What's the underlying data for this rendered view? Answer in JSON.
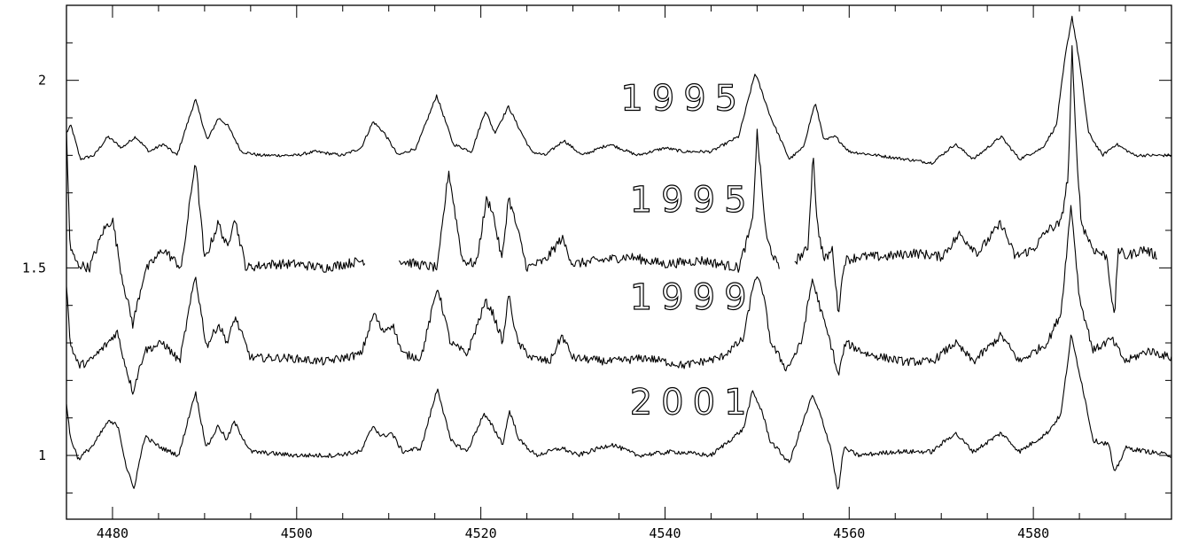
{
  "chart_data": {
    "type": "line",
    "title": "",
    "xlabel": "",
    "ylabel": "",
    "xlim": [
      4475,
      4595
    ],
    "ylim": [
      0.83,
      2.2
    ],
    "x_major_ticks": [
      4480,
      4500,
      4520,
      4540,
      4560,
      4580
    ],
    "x_tick_labels": [
      "4480",
      "4500",
      "4520",
      "4540",
      "4560",
      "4580"
    ],
    "x_minor_step": 5,
    "y_major_ticks": [
      1,
      1.5,
      2
    ],
    "y_tick_labels": [
      "1",
      "1.5",
      "2"
    ],
    "y_minor_step": 0.1,
    "grid": false,
    "legend": "none",
    "annotations": [
      {
        "text": "1995",
        "x": 4542,
        "y": 1.92
      },
      {
        "text": "1995",
        "x": 4543,
        "y": 1.65
      },
      {
        "text": "1999",
        "x": 4543,
        "y": 1.39
      },
      {
        "text": "2001",
        "x": 4543,
        "y": 1.11
      }
    ],
    "series": [
      {
        "name": "1995",
        "baseline": 1.8,
        "x": [
          4475,
          4475.5,
          4476.5,
          4478,
          4479.5,
          4481,
          4482.5,
          4484,
          4485.5,
          4487,
          4489,
          4490.3,
          4491.5,
          4492.5,
          4494,
          4496,
          4500,
          4502,
          4505,
          4507,
          4508.3,
          4509.5,
          4511,
          4513,
          4515.2,
          4517,
          4519,
          4520.5,
          4521.5,
          4523,
          4524.2,
          4525.5,
          4527,
          4529,
          4531,
          4534,
          4537,
          4540,
          4542,
          4545,
          4548,
          4549.8,
          4551.5,
          4553.5,
          4555,
          4556.3,
          4557.3,
          4558.5,
          4560,
          4563,
          4566,
          4569,
          4571.5,
          4573.5,
          4576.5,
          4578.5,
          4581,
          4582.5,
          4583.5,
          4584.2,
          4585,
          4586,
          4587.5,
          4589,
          4591,
          4595
        ],
        "y": [
          1.86,
          1.88,
          1.79,
          1.8,
          1.85,
          1.82,
          1.85,
          1.81,
          1.83,
          1.8,
          1.95,
          1.84,
          1.9,
          1.88,
          1.81,
          1.8,
          1.8,
          1.81,
          1.8,
          1.82,
          1.89,
          1.86,
          1.8,
          1.82,
          1.96,
          1.83,
          1.81,
          1.92,
          1.86,
          1.93,
          1.87,
          1.81,
          1.8,
          1.84,
          1.8,
          1.83,
          1.8,
          1.82,
          1.81,
          1.81,
          1.85,
          2.02,
          1.9,
          1.79,
          1.82,
          1.94,
          1.84,
          1.85,
          1.81,
          1.8,
          1.79,
          1.78,
          1.83,
          1.79,
          1.85,
          1.79,
          1.82,
          1.88,
          2.07,
          2.17,
          2.05,
          1.86,
          1.8,
          1.83,
          1.8,
          1.8
        ]
      },
      {
        "name": "1995",
        "baseline": 1.51,
        "gaps": [
          [
            4507.5,
            4511
          ],
          [
            4552.5,
            4554
          ]
        ],
        "x": [
          4475,
          4475.4,
          4476.2,
          4477.5,
          4479,
          4480,
          4481,
          4482.2,
          4483.5,
          4485.5,
          4487.5,
          4489,
          4490,
          4491.5,
          4492.5,
          4493.2,
          4494.5,
          4497,
          4500,
          4503,
          4507.3,
          4511.2,
          4513,
          4515.3,
          4516.5,
          4518,
          4519.5,
          4520.6,
          4521.2,
          4522.3,
          4523,
          4524,
          4525,
          4527,
          4528.8,
          4530,
          4533,
          4536,
          4540,
          4544,
          4548,
          4549.5,
          4550,
          4551,
          4552.3,
          4554.2,
          4555.5,
          4556.1,
          4556.5,
          4557.3,
          4558.2,
          4558.8,
          4559.5,
          4561,
          4564,
          4567,
          4570,
          4572,
          4574,
          4576.5,
          4578,
          4580,
          4581.5,
          4583,
          4583.8,
          4584.2,
          4584.6,
          4585.2,
          4586.5,
          4588,
          4588.8,
          4589.2,
          4590,
          4592,
          4593.5
        ],
        "y": [
          1.86,
          1.55,
          1.51,
          1.5,
          1.6,
          1.63,
          1.48,
          1.35,
          1.49,
          1.55,
          1.5,
          1.79,
          1.52,
          1.62,
          1.55,
          1.64,
          1.5,
          1.51,
          1.51,
          1.5,
          1.52,
          1.52,
          1.51,
          1.5,
          1.76,
          1.52,
          1.51,
          1.68,
          1.66,
          1.52,
          1.69,
          1.6,
          1.5,
          1.52,
          1.58,
          1.51,
          1.52,
          1.53,
          1.51,
          1.52,
          1.5,
          1.62,
          1.86,
          1.58,
          1.5,
          1.52,
          1.55,
          1.81,
          1.62,
          1.52,
          1.55,
          1.38,
          1.52,
          1.53,
          1.53,
          1.54,
          1.53,
          1.59,
          1.54,
          1.62,
          1.53,
          1.55,
          1.6,
          1.62,
          1.75,
          2.08,
          1.85,
          1.62,
          1.55,
          1.53,
          1.36,
          1.55,
          1.53,
          1.55,
          1.53
        ]
      },
      {
        "name": "1999",
        "baseline": 1.26,
        "x": [
          4475,
          4475.4,
          4476.3,
          4477.5,
          4479.5,
          4480.5,
          4481.3,
          4482.2,
          4483.5,
          4485.5,
          4487.3,
          4489,
          4490.2,
          4491.5,
          4492.5,
          4493.3,
          4495,
          4499,
          4503,
          4507,
          4508.4,
          4509.3,
          4510.4,
          4511.5,
          4513.5,
          4515.3,
          4516.7,
          4518.5,
          4520.5,
          4521.3,
          4522.4,
          4523,
          4524,
          4525.5,
          4527.5,
          4528.8,
          4530,
          4534,
          4538,
          4542,
          4546,
          4548.5,
          4549.8,
          4550.6,
          4551.5,
          4553.2,
          4554.8,
          4556,
          4557,
          4558.2,
          4558.8,
          4559.6,
          4562,
          4566,
          4569,
          4571.5,
          4573.5,
          4576.5,
          4578.5,
          4581.5,
          4583,
          4584.1,
          4585,
          4586.5,
          4588.5,
          4590,
          4592.5,
          4595
        ],
        "y": [
          1.46,
          1.3,
          1.24,
          1.25,
          1.3,
          1.33,
          1.25,
          1.17,
          1.28,
          1.3,
          1.25,
          1.48,
          1.29,
          1.35,
          1.3,
          1.37,
          1.26,
          1.26,
          1.25,
          1.27,
          1.38,
          1.33,
          1.35,
          1.27,
          1.26,
          1.45,
          1.3,
          1.27,
          1.41,
          1.38,
          1.3,
          1.43,
          1.3,
          1.26,
          1.25,
          1.32,
          1.26,
          1.25,
          1.26,
          1.24,
          1.26,
          1.31,
          1.48,
          1.44,
          1.3,
          1.23,
          1.3,
          1.47,
          1.38,
          1.28,
          1.21,
          1.3,
          1.27,
          1.25,
          1.25,
          1.3,
          1.25,
          1.32,
          1.25,
          1.3,
          1.38,
          1.67,
          1.42,
          1.28,
          1.31,
          1.25,
          1.28,
          1.26
        ]
      },
      {
        "name": "2001",
        "baseline": 1.0,
        "x": [
          4475,
          4475.4,
          4476.3,
          4478,
          4479.5,
          4480.6,
          4481.5,
          4482.3,
          4483.5,
          4485.3,
          4487.2,
          4489,
          4490.2,
          4491.5,
          4492.4,
          4493.2,
          4495,
          4500,
          4504,
          4507,
          4508.3,
          4509.2,
          4510.3,
          4511.5,
          4513.5,
          4515.3,
          4516.7,
          4518.5,
          4520.3,
          4521.2,
          4522.4,
          4523.1,
          4524.2,
          4526,
          4528.8,
          4530.5,
          4534.2,
          4537,
          4541,
          4545,
          4548.5,
          4549.5,
          4550.5,
          4551.4,
          4553.5,
          4555,
          4556,
          4557,
          4558,
          4558.8,
          4559.4,
          4561,
          4565,
          4569,
          4571.5,
          4573.5,
          4576.5,
          4578.5,
          4581.5,
          4583,
          4584.1,
          4585.2,
          4586.5,
          4588.2,
          4588.8,
          4590,
          4592.5,
          4595
        ],
        "y": [
          1.14,
          1.05,
          0.99,
          1.03,
          1.09,
          1.08,
          0.97,
          0.91,
          1.05,
          1.02,
          1.0,
          1.17,
          1.02,
          1.08,
          1.04,
          1.09,
          1.01,
          1.0,
          1.0,
          1.01,
          1.08,
          1.05,
          1.06,
          1.01,
          1.02,
          1.18,
          1.04,
          1.01,
          1.11,
          1.08,
          1.03,
          1.12,
          1.04,
          1.0,
          1.02,
          1.0,
          1.03,
          1.0,
          1.01,
          1.0,
          1.07,
          1.17,
          1.12,
          1.04,
          0.98,
          1.09,
          1.16,
          1.1,
          1.02,
          0.9,
          1.02,
          1.0,
          1.01,
          1.01,
          1.06,
          1.01,
          1.06,
          1.01,
          1.06,
          1.11,
          1.32,
          1.2,
          1.04,
          1.03,
          0.95,
          1.02,
          1.01,
          1.0
        ]
      }
    ]
  }
}
